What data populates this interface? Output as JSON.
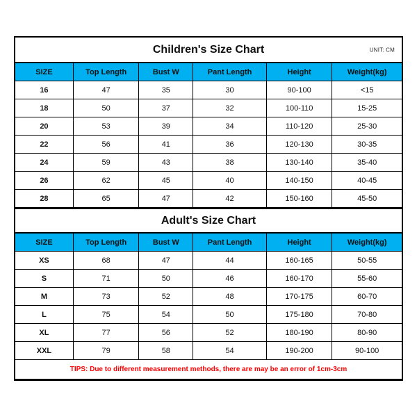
{
  "unit_label": "UNIT: CM",
  "columns": [
    "SIZE",
    "Top Length",
    "Bust W",
    "Pant Length",
    "Height",
    "Weight(kg)"
  ],
  "children": {
    "title": "Children's Size Chart",
    "header_bg": "#00b0f0",
    "rows": [
      [
        "16",
        "47",
        "35",
        "30",
        "90-100",
        "<15"
      ],
      [
        "18",
        "50",
        "37",
        "32",
        "100-110",
        "15-25"
      ],
      [
        "20",
        "53",
        "39",
        "34",
        "110-120",
        "25-30"
      ],
      [
        "22",
        "56",
        "41",
        "36",
        "120-130",
        "30-35"
      ],
      [
        "24",
        "59",
        "43",
        "38",
        "130-140",
        "35-40"
      ],
      [
        "26",
        "62",
        "45",
        "40",
        "140-150",
        "40-45"
      ],
      [
        "28",
        "65",
        "47",
        "42",
        "150-160",
        "45-50"
      ]
    ]
  },
  "adult": {
    "title": "Adult's Size Chart",
    "header_bg": "#00b0f0",
    "rows": [
      [
        "XS",
        "68",
        "47",
        "44",
        "160-165",
        "50-55"
      ],
      [
        "S",
        "71",
        "50",
        "46",
        "160-170",
        "55-60"
      ],
      [
        "M",
        "73",
        "52",
        "48",
        "170-175",
        "60-70"
      ],
      [
        "L",
        "75",
        "54",
        "50",
        "175-180",
        "70-80"
      ],
      [
        "XL",
        "77",
        "56",
        "52",
        "180-190",
        "80-90"
      ],
      [
        "XXL",
        "79",
        "58",
        "54",
        "190-200",
        "90-100"
      ]
    ]
  },
  "tips": "TIPS: Due to different measurement methods, there are may be an error of 1cm-3cm",
  "style": {
    "frame_border": "#000000",
    "cell_border": "#000000",
    "tips_color": "#ff0000",
    "title_fontsize": 16,
    "cell_fontsize": 11,
    "tips_fontsize": 10,
    "col_widths_pct": [
      15,
      17,
      14,
      19,
      17,
      18
    ]
  }
}
